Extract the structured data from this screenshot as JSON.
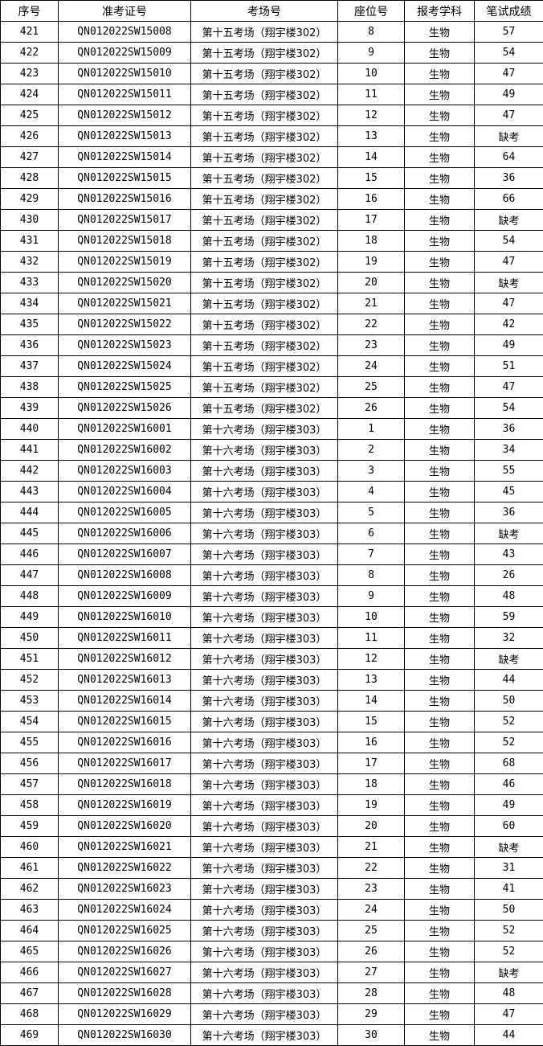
{
  "table": {
    "headers": [
      "序号",
      "准考证号",
      "考场号",
      "座位号",
      "报考学科",
      "笔试成绩"
    ],
    "rows": [
      [
        "421",
        "QN012022SW15008",
        "第十五考场（翔宇楼302）",
        "8",
        "生物",
        "57"
      ],
      [
        "422",
        "QN012022SW15009",
        "第十五考场（翔宇楼302）",
        "9",
        "生物",
        "54"
      ],
      [
        "423",
        "QN012022SW15010",
        "第十五考场（翔宇楼302）",
        "10",
        "生物",
        "47"
      ],
      [
        "424",
        "QN012022SW15011",
        "第十五考场（翔宇楼302）",
        "11",
        "生物",
        "49"
      ],
      [
        "425",
        "QN012022SW15012",
        "第十五考场（翔宇楼302）",
        "12",
        "生物",
        "47"
      ],
      [
        "426",
        "QN012022SW15013",
        "第十五考场（翔宇楼302）",
        "13",
        "生物",
        "缺考"
      ],
      [
        "427",
        "QN012022SW15014",
        "第十五考场（翔宇楼302）",
        "14",
        "生物",
        "64"
      ],
      [
        "428",
        "QN012022SW15015",
        "第十五考场（翔宇楼302）",
        "15",
        "生物",
        "36"
      ],
      [
        "429",
        "QN012022SW15016",
        "第十五考场（翔宇楼302）",
        "16",
        "生物",
        "66"
      ],
      [
        "430",
        "QN012022SW15017",
        "第十五考场（翔宇楼302）",
        "17",
        "生物",
        "缺考"
      ],
      [
        "431",
        "QN012022SW15018",
        "第十五考场（翔宇楼302）",
        "18",
        "生物",
        "54"
      ],
      [
        "432",
        "QN012022SW15019",
        "第十五考场（翔宇楼302）",
        "19",
        "生物",
        "47"
      ],
      [
        "433",
        "QN012022SW15020",
        "第十五考场（翔宇楼302）",
        "20",
        "生物",
        "缺考"
      ],
      [
        "434",
        "QN012022SW15021",
        "第十五考场（翔宇楼302）",
        "21",
        "生物",
        "47"
      ],
      [
        "435",
        "QN012022SW15022",
        "第十五考场（翔宇楼302）",
        "22",
        "生物",
        "42"
      ],
      [
        "436",
        "QN012022SW15023",
        "第十五考场（翔宇楼302）",
        "23",
        "生物",
        "49"
      ],
      [
        "437",
        "QN012022SW15024",
        "第十五考场（翔宇楼302）",
        "24",
        "生物",
        "51"
      ],
      [
        "438",
        "QN012022SW15025",
        "第十五考场（翔宇楼302）",
        "25",
        "生物",
        "47"
      ],
      [
        "439",
        "QN012022SW15026",
        "第十五考场（翔宇楼302）",
        "26",
        "生物",
        "54"
      ],
      [
        "440",
        "QN012022SW16001",
        "第十六考场（翔宇楼303）",
        "1",
        "生物",
        "36"
      ],
      [
        "441",
        "QN012022SW16002",
        "第十六考场（翔宇楼303）",
        "2",
        "生物",
        "34"
      ],
      [
        "442",
        "QN012022SW16003",
        "第十六考场（翔宇楼303）",
        "3",
        "生物",
        "55"
      ],
      [
        "443",
        "QN012022SW16004",
        "第十六考场（翔宇楼303）",
        "4",
        "生物",
        "45"
      ],
      [
        "444",
        "QN012022SW16005",
        "第十六考场（翔宇楼303）",
        "5",
        "生物",
        "36"
      ],
      [
        "445",
        "QN012022SW16006",
        "第十六考场（翔宇楼303）",
        "6",
        "生物",
        "缺考"
      ],
      [
        "446",
        "QN012022SW16007",
        "第十六考场（翔宇楼303）",
        "7",
        "生物",
        "43"
      ],
      [
        "447",
        "QN012022SW16008",
        "第十六考场（翔宇楼303）",
        "8",
        "生物",
        "26"
      ],
      [
        "448",
        "QN012022SW16009",
        "第十六考场（翔宇楼303）",
        "9",
        "生物",
        "48"
      ],
      [
        "449",
        "QN012022SW16010",
        "第十六考场（翔宇楼303）",
        "10",
        "生物",
        "59"
      ],
      [
        "450",
        "QN012022SW16011",
        "第十六考场（翔宇楼303）",
        "11",
        "生物",
        "32"
      ],
      [
        "451",
        "QN012022SW16012",
        "第十六考场（翔宇楼303）",
        "12",
        "生物",
        "缺考"
      ],
      [
        "452",
        "QN012022SW16013",
        "第十六考场（翔宇楼303）",
        "13",
        "生物",
        "44"
      ],
      [
        "453",
        "QN012022SW16014",
        "第十六考场（翔宇楼303）",
        "14",
        "生物",
        "50"
      ],
      [
        "454",
        "QN012022SW16015",
        "第十六考场（翔宇楼303）",
        "15",
        "生物",
        "52"
      ],
      [
        "455",
        "QN012022SW16016",
        "第十六考场（翔宇楼303）",
        "16",
        "生物",
        "52"
      ],
      [
        "456",
        "QN012022SW16017",
        "第十六考场（翔宇楼303）",
        "17",
        "生物",
        "68"
      ],
      [
        "457",
        "QN012022SW16018",
        "第十六考场（翔宇楼303）",
        "18",
        "生物",
        "46"
      ],
      [
        "458",
        "QN012022SW16019",
        "第十六考场（翔宇楼303）",
        "19",
        "生物",
        "49"
      ],
      [
        "459",
        "QN012022SW16020",
        "第十六考场（翔宇楼303）",
        "20",
        "生物",
        "60"
      ],
      [
        "460",
        "QN012022SW16021",
        "第十六考场（翔宇楼303）",
        "21",
        "生物",
        "缺考"
      ],
      [
        "461",
        "QN012022SW16022",
        "第十六考场（翔宇楼303）",
        "22",
        "生物",
        "31"
      ],
      [
        "462",
        "QN012022SW16023",
        "第十六考场（翔宇楼303）",
        "23",
        "生物",
        "41"
      ],
      [
        "463",
        "QN012022SW16024",
        "第十六考场（翔宇楼303）",
        "24",
        "生物",
        "50"
      ],
      [
        "464",
        "QN012022SW16025",
        "第十六考场（翔宇楼303）",
        "25",
        "生物",
        "52"
      ],
      [
        "465",
        "QN012022SW16026",
        "第十六考场（翔宇楼303）",
        "26",
        "生物",
        "52"
      ],
      [
        "466",
        "QN012022SW16027",
        "第十六考场（翔宇楼303）",
        "27",
        "生物",
        "缺考"
      ],
      [
        "467",
        "QN012022SW16028",
        "第十六考场（翔宇楼303）",
        "28",
        "生物",
        "48"
      ],
      [
        "468",
        "QN012022SW16029",
        "第十六考场（翔宇楼303）",
        "29",
        "生物",
        "47"
      ],
      [
        "469",
        "QN012022SW16030",
        "第十六考场（翔宇楼303）",
        "30",
        "生物",
        "44"
      ]
    ]
  }
}
